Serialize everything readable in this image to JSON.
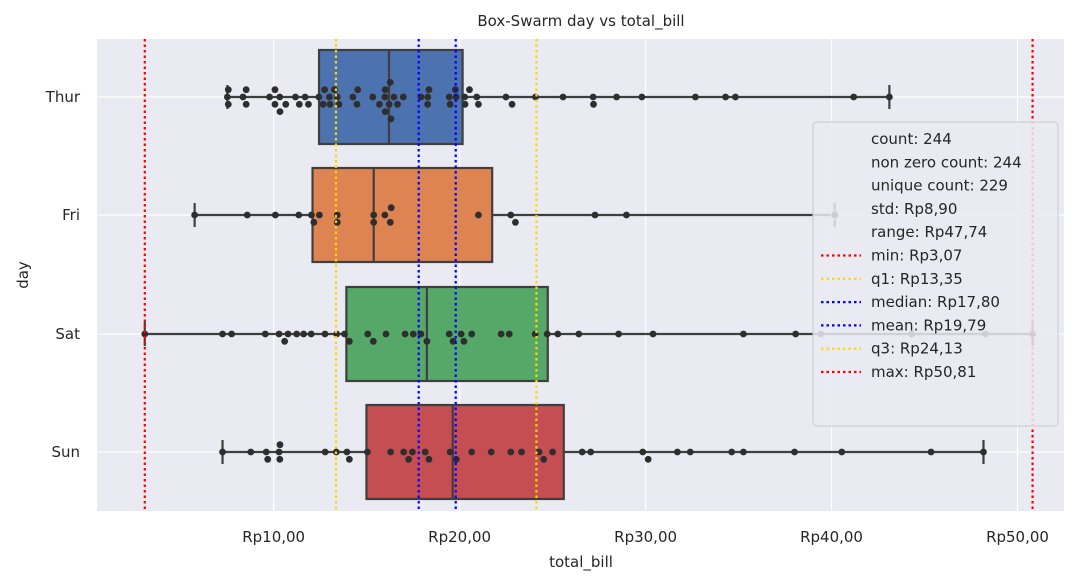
{
  "chart_data": {
    "type": "box-swarm",
    "title": "Box-Swarm day vs total_bill",
    "xlabel": "total_bill",
    "ylabel": "day",
    "xlim": [
      0.5,
      52.5
    ],
    "xticks": [
      10,
      20,
      30,
      40,
      50
    ],
    "xtick_labels": [
      "Rp10,00",
      "Rp20,00",
      "Rp30,00",
      "Rp40,00",
      "Rp50,00"
    ],
    "grid": true,
    "categories": [
      "Thur",
      "Fri",
      "Sat",
      "Sun"
    ],
    "colors": [
      "#4c72b0",
      "#dd8452",
      "#55a868",
      "#c44e52"
    ],
    "boxes": [
      {
        "day": "Thur",
        "whisker_low": 7.51,
        "q1": 12.44,
        "median": 16.2,
        "q3": 20.16,
        "whisker_high": 43.11,
        "fliers": []
      },
      {
        "day": "Fri",
        "whisker_low": 5.75,
        "q1": 12.09,
        "median": 15.38,
        "q3": 21.75,
        "whisker_high": 40.17,
        "fliers": [
          40.17
        ]
      },
      {
        "day": "Sat",
        "whisker_low": 3.07,
        "q1": 13.91,
        "median": 18.24,
        "q3": 24.74,
        "whisker_high": 50.81,
        "fliers": []
      },
      {
        "day": "Sun",
        "whisker_low": 7.25,
        "q1": 14.99,
        "median": 19.63,
        "q3": 25.6,
        "whisker_high": 48.17,
        "fliers": []
      }
    ],
    "points": {
      "Thur": [
        7.51,
        7.56,
        7.56,
        8.35,
        8.52,
        8.52,
        9.78,
        10.07,
        10.07,
        10.33,
        10.34,
        10.65,
        11.17,
        11.38,
        11.69,
        11.87,
        12.43,
        12.66,
        12.74,
        13.0,
        13.03,
        13.27,
        13.42,
        13.51,
        14.26,
        14.48,
        14.52,
        15.33,
        15.69,
        15.98,
        16.0,
        16.0,
        16.21,
        16.27,
        16.31,
        16.47,
        16.66,
        16.97,
        17.92,
        18.28,
        18.29,
        18.35,
        19.44,
        19.49,
        19.77,
        19.81,
        20.27,
        20.29,
        20.53,
        20.92,
        21.01,
        22.49,
        22.82,
        24.08,
        25.56,
        27.18,
        27.2,
        28.44,
        29.8,
        32.68,
        34.3,
        34.83,
        41.19,
        43.11
      ],
      "Fri": [
        5.75,
        8.58,
        10.09,
        11.35,
        12.03,
        12.16,
        12.46,
        13.42,
        13.42,
        15.38,
        15.38,
        15.98,
        16.32,
        16.27,
        21.01,
        22.75,
        23.0,
        27.28,
        28.97,
        40.17
      ],
      "Sat": [
        3.07,
        7.25,
        7.74,
        9.55,
        10.29,
        10.77,
        10.59,
        11.24,
        11.61,
        12.02,
        12.76,
        13.39,
        13.81,
        14.07,
        15.06,
        15.36,
        16.04,
        17.07,
        17.51,
        17.92,
        18.24,
        19.44,
        19.65,
        20.08,
        20.23,
        20.65,
        22.23,
        22.67,
        24.06,
        24.71,
        25.28,
        26.41,
        28.55,
        30.4,
        35.26,
        38.07,
        39.42,
        44.3,
        48.27,
        50.81
      ],
      "Sun": [
        7.25,
        8.77,
        9.6,
        9.68,
        10.29,
        10.33,
        10.34,
        12.77,
        13.37,
        13.94,
        14.07,
        15.04,
        16.29,
        16.99,
        17.26,
        17.46,
        18.15,
        18.35,
        19.49,
        19.82,
        20.65,
        21.7,
        22.75,
        23.33,
        24.27,
        24.52,
        25.0,
        26.59,
        27.05,
        29.85,
        30.14,
        31.71,
        32.4,
        34.63,
        35.26,
        38.01,
        40.55,
        45.35,
        48.17
      ]
    },
    "reference_lines": [
      {
        "label": "min: Rp3,07",
        "value": 3.07,
        "color": "#ff0000"
      },
      {
        "label": "q1: Rp13,35",
        "value": 13.35,
        "color": "#ffd700"
      },
      {
        "label": "median: Rp17,80",
        "value": 17.8,
        "color": "#0000ff"
      },
      {
        "label": "mean: Rp19,79",
        "value": 19.79,
        "color": "#0000ff"
      },
      {
        "label": "q3: Rp24,13",
        "value": 24.13,
        "color": "#ffd700"
      },
      {
        "label": "max: Rp50,81",
        "value": 50.81,
        "color": "#ff0000"
      }
    ],
    "legend": {
      "placement": "right",
      "stats": [
        "count: 244",
        "non zero count: 244",
        "unique count: 229",
        "std: Rp8,90",
        "range: Rp47,74"
      ]
    }
  }
}
